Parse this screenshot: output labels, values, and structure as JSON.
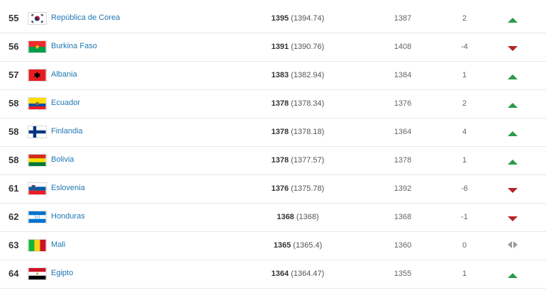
{
  "colors": {
    "team_link": "#1f77b4",
    "up": "#2e9a4b",
    "down": "#b52424",
    "same": "#999999"
  },
  "rows": [
    {
      "rank": "55",
      "team": "República de Corea",
      "flag": "korea-flag-icon",
      "points_bold": "1395",
      "points_exact": "(1394.74)",
      "previous": "1387",
      "movement": "2",
      "trend": "up"
    },
    {
      "rank": "56",
      "team": "Burkina Faso",
      "flag": "burkina-faso-flag-icon",
      "points_bold": "1391",
      "points_exact": "(1390.76)",
      "previous": "1408",
      "movement": "-4",
      "trend": "down"
    },
    {
      "rank": "57",
      "team": "Albania",
      "flag": "albania-flag-icon",
      "points_bold": "1383",
      "points_exact": "(1382.94)",
      "previous": "1384",
      "movement": "1",
      "trend": "up"
    },
    {
      "rank": "58",
      "team": "Ecuador",
      "flag": "ecuador-flag-icon",
      "points_bold": "1378",
      "points_exact": "(1378.34)",
      "previous": "1376",
      "movement": "2",
      "trend": "up"
    },
    {
      "rank": "58",
      "team": "Finlandia",
      "flag": "finland-flag-icon",
      "points_bold": "1378",
      "points_exact": "(1378.18)",
      "previous": "1364",
      "movement": "4",
      "trend": "up"
    },
    {
      "rank": "58",
      "team": "Bolivia",
      "flag": "bolivia-flag-icon",
      "points_bold": "1378",
      "points_exact": "(1377.57)",
      "previous": "1378",
      "movement": "1",
      "trend": "up"
    },
    {
      "rank": "61",
      "team": "Eslovenia",
      "flag": "slovenia-flag-icon",
      "points_bold": "1376",
      "points_exact": "(1375.78)",
      "previous": "1392",
      "movement": "-6",
      "trend": "down"
    },
    {
      "rank": "62",
      "team": "Honduras",
      "flag": "honduras-flag-icon",
      "points_bold": "1368",
      "points_exact": "(1368)",
      "previous": "1368",
      "movement": "-1",
      "trend": "down"
    },
    {
      "rank": "63",
      "team": "Mali",
      "flag": "mali-flag-icon",
      "points_bold": "1365",
      "points_exact": "(1365.4)",
      "previous": "1360",
      "movement": "0",
      "trend": "same"
    },
    {
      "rank": "64",
      "team": "Egipto",
      "flag": "egypt-flag-icon",
      "points_bold": "1364",
      "points_exact": "(1364.47)",
      "previous": "1355",
      "movement": "1",
      "trend": "up"
    }
  ]
}
